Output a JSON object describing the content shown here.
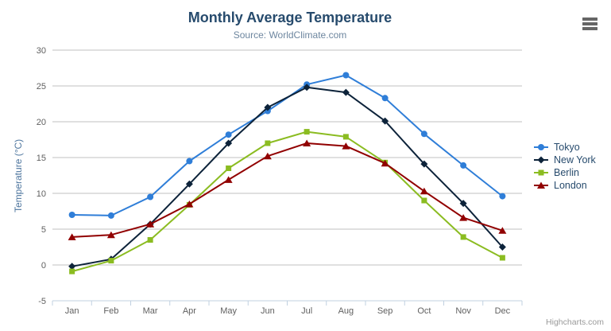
{
  "header": {
    "title": "Monthly Average Temperature",
    "subtitle": "Source: WorldClimate.com"
  },
  "credits": {
    "label": "Highcharts.com"
  },
  "icons": {
    "export_menu": "hamburger-menu-icon"
  },
  "colors": {
    "title": "#274b6d",
    "subtitle": "#6d869f",
    "axis_title": "#4d759e",
    "tick_label": "#606060",
    "gridline": "#c0c0c0",
    "axis_line": "#c0d0e0",
    "legend_text": "#274b6d",
    "tokyo": "#2f7ed8",
    "new_york": "#0d233a",
    "berlin": "#8bbc21",
    "london": "#910000"
  },
  "chart_data": {
    "type": "line",
    "title": "Monthly Average Temperature",
    "subtitle": "Source: WorldClimate.com",
    "categories": [
      "Jan",
      "Feb",
      "Mar",
      "Apr",
      "May",
      "Jun",
      "Jul",
      "Aug",
      "Sep",
      "Oct",
      "Nov",
      "Dec"
    ],
    "series": [
      {
        "name": "Tokyo",
        "color": "#2f7ed8",
        "marker": "circle",
        "values": [
          7.0,
          6.9,
          9.5,
          14.5,
          18.2,
          21.5,
          25.2,
          26.5,
          23.3,
          18.3,
          13.9,
          9.6
        ]
      },
      {
        "name": "New York",
        "color": "#0d233a",
        "marker": "diamond",
        "values": [
          -0.2,
          0.8,
          5.7,
          11.3,
          17.0,
          22.0,
          24.8,
          24.1,
          20.1,
          14.1,
          8.6,
          2.5
        ]
      },
      {
        "name": "Berlin",
        "color": "#8bbc21",
        "marker": "square",
        "values": [
          -0.9,
          0.6,
          3.5,
          8.4,
          13.5,
          17.0,
          18.6,
          17.9,
          14.3,
          9.0,
          3.9,
          1.0
        ]
      },
      {
        "name": "London",
        "color": "#910000",
        "marker": "triangle",
        "values": [
          3.9,
          4.2,
          5.7,
          8.5,
          11.9,
          15.2,
          17.0,
          16.6,
          14.2,
          10.3,
          6.6,
          4.8
        ]
      }
    ],
    "xlabel": "",
    "ylabel": "Temperature (°C)",
    "ylim": [
      -5,
      30
    ],
    "ytick_step": 5,
    "yticks": [
      -5,
      0,
      5,
      10,
      15,
      20,
      25,
      30
    ],
    "grid": true,
    "legend_position": "right"
  }
}
